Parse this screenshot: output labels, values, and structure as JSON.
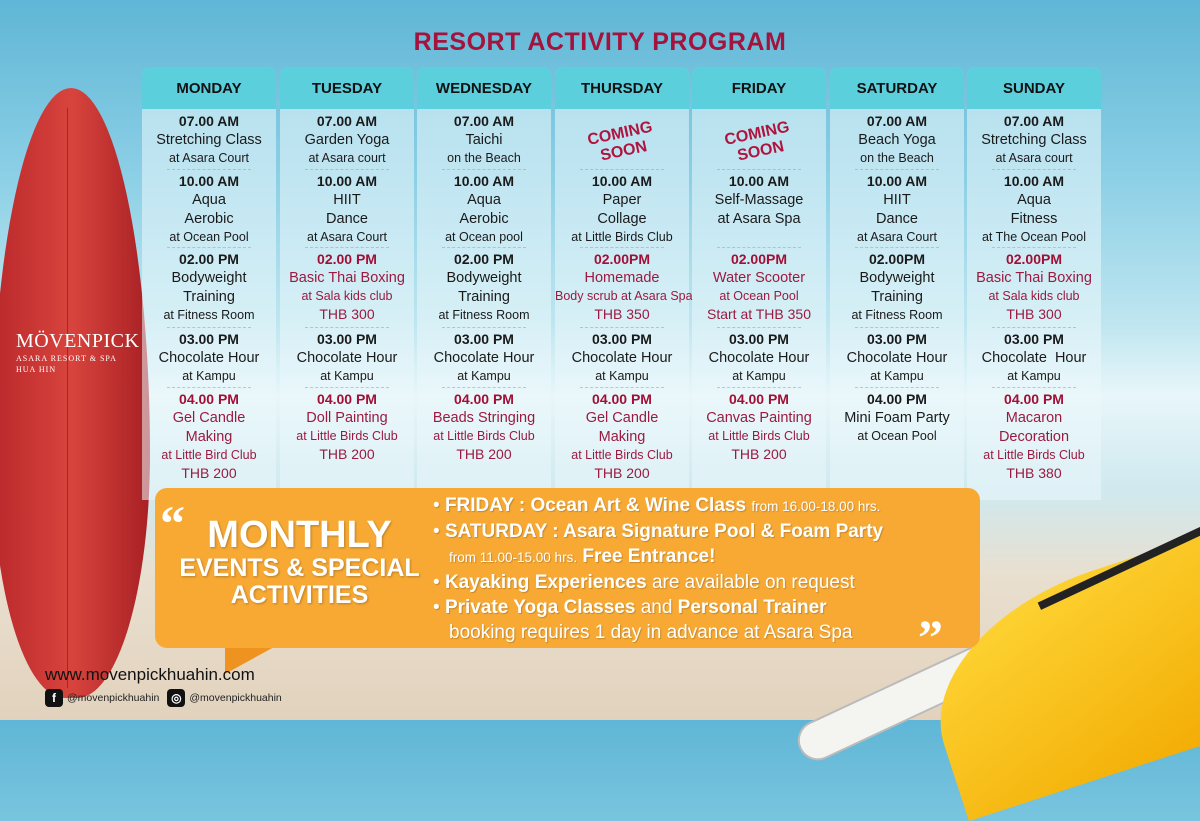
{
  "title": "RESORT ACTIVITY PROGRAM",
  "brand": {
    "name": "MÖVENPICK",
    "sub1": "ASARA RESORT & SPA",
    "sub2": "HUA HIN"
  },
  "colors": {
    "header": "#5ccfdc",
    "title": "#a5123c",
    "highlight": "#9b1a40",
    "banner": "#f7a934"
  },
  "days": [
    {
      "name": "MONDAY",
      "coming_soon": "",
      "slots": [
        {
          "time": "07.00 AM",
          "title": "Stretching Class",
          "location": "at Asara Court",
          "price": "",
          "red": false
        },
        {
          "time": "10.00 AM",
          "title": "Aqua\nAerobic",
          "location": "at Ocean Pool",
          "price": "",
          "red": false
        },
        {
          "time": "02.00 PM",
          "title": "Bodyweight\nTraining",
          "location": "at Fitness Room",
          "price": "",
          "red": false
        },
        {
          "time": "03.00 PM",
          "title": "Chocolate Hour",
          "location": "at Kampu",
          "price": "",
          "red": false
        },
        {
          "time": "04.00 PM",
          "title": "Gel Candle\nMaking",
          "location": "at Little Bird Club",
          "price": "THB 200",
          "red": true
        }
      ]
    },
    {
      "name": "TUESDAY",
      "coming_soon": "",
      "slots": [
        {
          "time": "07.00 AM",
          "title": "Garden Yoga",
          "location": "at Asara court",
          "price": "",
          "red": false
        },
        {
          "time": "10.00 AM",
          "title": "HIIT\nDance",
          "location": "at Asara Court",
          "price": "",
          "red": false
        },
        {
          "time": "02.00 PM",
          "title": "Basic Thai Boxing",
          "location": "at Sala kids club",
          "price": "THB 300",
          "red": true
        },
        {
          "time": "03.00 PM",
          "title": "Chocolate Hour",
          "location": "at Kampu",
          "price": "",
          "red": false
        },
        {
          "time": "04.00 PM",
          "title": "Doll Painting",
          "location": "at Little Birds Club",
          "price": "THB 200",
          "red": true
        }
      ]
    },
    {
      "name": "WEDNESDAY",
      "coming_soon": "",
      "slots": [
        {
          "time": "07.00 AM",
          "title": "Taichi",
          "location": "on the Beach",
          "price": "",
          "red": false
        },
        {
          "time": "10.00 AM",
          "title": "Aqua\nAerobic",
          "location": "at Ocean pool",
          "price": "",
          "red": false
        },
        {
          "time": "02.00 PM",
          "title": "Bodyweight\nTraining",
          "location": "at Fitness Room",
          "price": "",
          "red": false
        },
        {
          "time": "03.00 PM",
          "title": "Chocolate Hour",
          "location": "at Kampu",
          "price": "",
          "red": false
        },
        {
          "time": "04.00 PM",
          "title": "Beads Stringing",
          "location": "at Little Birds Club",
          "price": "THB 200",
          "red": true
        }
      ]
    },
    {
      "name": "THURSDAY",
      "coming_soon": "COMING\nSOON",
      "slots": [
        {
          "time": "",
          "title": "",
          "location": "",
          "price": "",
          "red": false
        },
        {
          "time": "10.00 AM",
          "title": "Paper\nCollage",
          "location": "at Little Birds Club",
          "price": "",
          "red": false
        },
        {
          "time": "02.00PM",
          "title": "Homemade",
          "location": "Body scrub at Asara Spa",
          "price": "THB 350",
          "red": true
        },
        {
          "time": "03.00 PM",
          "title": "Chocolate Hour",
          "location": "at Kampu",
          "price": "",
          "red": false
        },
        {
          "time": "04.00 PM",
          "title": "Gel Candle\nMaking",
          "location": "at Little Birds Club",
          "price": "THB 200",
          "red": true
        }
      ]
    },
    {
      "name": "FRIDAY",
      "coming_soon": "COMING\nSOON",
      "slots": [
        {
          "time": "",
          "title": "",
          "location": "",
          "price": "",
          "red": false
        },
        {
          "time": "10.00 AM",
          "title": "Self-Massage\nat Asara Spa",
          "location": "",
          "price": "",
          "red": false
        },
        {
          "time": "02.00PM",
          "title": "Water Scooter",
          "location": "at Ocean Pool",
          "price": "Start at THB 350",
          "red": true
        },
        {
          "time": "03.00 PM",
          "title": "Chocolate Hour",
          "location": "at Kampu",
          "price": "",
          "red": false
        },
        {
          "time": "04.00 PM",
          "title": "Canvas Painting",
          "location": "at Little Birds Club",
          "price": "THB 200",
          "red": true
        }
      ]
    },
    {
      "name": "SATURDAY",
      "coming_soon": "",
      "slots": [
        {
          "time": "07.00 AM",
          "title": "Beach Yoga",
          "location": "on the Beach",
          "price": "",
          "red": false
        },
        {
          "time": "10.00 AM",
          "title": "HIIT\nDance",
          "location": "at Asara Court",
          "price": "",
          "red": false
        },
        {
          "time": "02.00PM",
          "title": "Bodyweight\nTraining",
          "location": "at Fitness Room",
          "price": "",
          "red": false
        },
        {
          "time": "03.00 PM",
          "title": "Chocolate Hour",
          "location": "at Kampu",
          "price": "",
          "red": false
        },
        {
          "time": "04.00 PM",
          "title": "Mini Foam Party",
          "location": "at Ocean Pool",
          "price": "",
          "red": false
        }
      ]
    },
    {
      "name": "SUNDAY",
      "coming_soon": "",
      "slots": [
        {
          "time": "07.00 AM",
          "title": "Stretching Class",
          "location": "at Asara court",
          "price": "",
          "red": false
        },
        {
          "time": "10.00 AM",
          "title": "Aqua\nFitness",
          "location": "at The Ocean Pool",
          "price": "",
          "red": false
        },
        {
          "time": "02.00PM",
          "title": "Basic Thai Boxing",
          "location": "at Sala kids club",
          "price": "THB 300",
          "red": true
        },
        {
          "time": "03.00 PM",
          "title": "Chocolate  Hour",
          "location": "at Kampu",
          "price": "",
          "red": false
        },
        {
          "time": "04.00 PM",
          "title": "Macaron\nDecoration",
          "location": "at Little Birds Club",
          "price": "THB 380",
          "red": true
        }
      ]
    }
  ],
  "banner": {
    "open_quote": "“",
    "close_quote": "”",
    "heading": "MONTHLY",
    "heading2": "EVENTS & SPECIAL",
    "heading3": "ACTIVITIES",
    "e1_bold": "FRIDAY : Ocean Art  & Wine Class",
    "e1_small": "from 16.00-18.00 hrs.",
    "e2_bold": "SATURDAY : Asara Signature Pool & Foam Party",
    "e2_small": "from 11.00-15.00 hrs.",
    "e2_bold2": "Free Entrance!",
    "e3_bold": "Kayaking Experiences",
    "e3_rest": "are available on request",
    "e4_bold": "Private Yoga Classes",
    "e4_and": "and",
    "e4_bold2": "Personal Trainer",
    "e4_rest": "booking requires 1 day in advance at Asara Spa"
  },
  "footer": {
    "website": "www.movenpickhuahin.com",
    "facebook": "@movenpickhuahin",
    "instagram": "@movenpickhuahin",
    "fb_icon": "facebook-icon",
    "ig_icon": "instagram-icon"
  }
}
